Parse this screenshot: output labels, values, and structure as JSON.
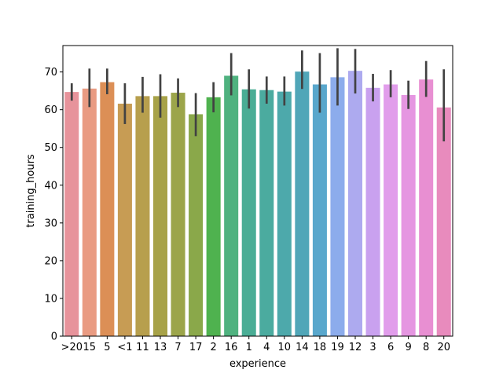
{
  "chart_data": {
    "type": "bar",
    "xlabel": "experience",
    "ylabel": "training_hours",
    "ylim": [
      0,
      77
    ],
    "yticks": [
      0,
      10,
      20,
      30,
      40,
      50,
      60,
      70
    ],
    "grid": false,
    "categories": [
      ">20",
      "15",
      "5",
      "<1",
      "11",
      "13",
      "7",
      "17",
      "2",
      "16",
      "1",
      "4",
      "10",
      "14",
      "18",
      "19",
      "12",
      "3",
      "6",
      "9",
      "8",
      "20"
    ],
    "values": [
      64.7,
      65.6,
      67.3,
      61.6,
      63.6,
      63.6,
      64.5,
      58.8,
      63.3,
      69.0,
      65.4,
      65.2,
      64.8,
      70.1,
      66.7,
      68.6,
      70.3,
      65.8,
      66.7,
      63.9,
      68.0,
      60.6
    ],
    "error_low": [
      62.4,
      60.7,
      64.1,
      56.2,
      59.2,
      57.9,
      60.7,
      53.0,
      59.3,
      63.8,
      60.3,
      61.6,
      61.1,
      65.5,
      59.2,
      61.1,
      64.3,
      62.2,
      63.3,
      60.2,
      63.4,
      51.6
    ],
    "error_high": [
      67.0,
      70.9,
      70.9,
      67.0,
      68.7,
      69.4,
      68.3,
      64.4,
      67.3,
      75.0,
      70.7,
      68.8,
      68.8,
      75.7,
      75.0,
      76.3,
      76.1,
      69.5,
      70.5,
      67.7,
      72.9,
      70.7
    ],
    "colors": [
      "#e7939b",
      "#e99b82",
      "#dc8f56",
      "#c79c54",
      "#b79f4d",
      "#a7a248",
      "#9ca54a",
      "#8aa84a",
      "#4fb24f",
      "#4fb27f",
      "#4aad95",
      "#4bab9f",
      "#4da9ab",
      "#50a6b8",
      "#59a7cc",
      "#8cacec",
      "#adaaef",
      "#c9a1ef",
      "#e19deb",
      "#e596e1",
      "#e88fd2",
      "#e88bbd"
    ]
  }
}
